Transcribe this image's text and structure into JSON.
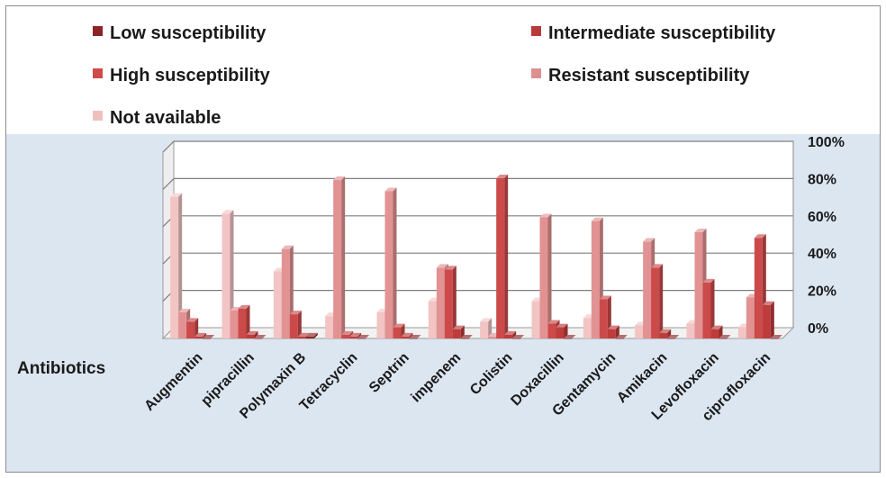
{
  "chart_data": {
    "type": "bar",
    "xlabel": "Antibiotics",
    "ylim": [
      0,
      100
    ],
    "ytick_labels": [
      "0%",
      "20%",
      "40%",
      "60%",
      "80%",
      "100%"
    ],
    "grid": true,
    "legend_position": "top",
    "categories": [
      "Augmentin",
      "pipracillin",
      "Polymaxin B",
      "Tetracyclin",
      "Septrin",
      "impenem",
      "Colistin",
      "Doxacillin",
      "Gentamycin",
      "Amikacin",
      "Levofloxacin",
      "ciprofloxacin"
    ],
    "series": [
      {
        "name": "Not available",
        "color": "#f2c4c4",
        "values": [
          76,
          67,
          36,
          12,
          14,
          20,
          9,
          20,
          11,
          7,
          8,
          6
        ]
      },
      {
        "name": "Resistant susceptibility",
        "color": "#e29292",
        "values": [
          14,
          15,
          48,
          85,
          79,
          38,
          1,
          65,
          63,
          52,
          57,
          22
        ]
      },
      {
        "name": "High susceptibility",
        "color": "#cc4a4a",
        "values": [
          9,
          16,
          13,
          2,
          6,
          37,
          86,
          8,
          21,
          38,
          30,
          54
        ]
      },
      {
        "name": "Intermediate susceptibility",
        "color": "#bf3c3c",
        "values": [
          1,
          2,
          1,
          1,
          1,
          5,
          2,
          6,
          5,
          3,
          5,
          18
        ]
      },
      {
        "name": "Low susceptibility",
        "color": "#8b2424",
        "values": [
          0,
          0,
          1,
          0,
          0,
          0,
          0,
          0,
          0,
          0,
          0,
          0
        ]
      }
    ]
  },
  "legend": [
    {
      "label": "Low susceptibility",
      "color": "#8b2424"
    },
    {
      "label": "Intermediate susceptibility",
      "color": "#b83a3a"
    },
    {
      "label": "High susceptibility",
      "color": "#d04a4a"
    },
    {
      "label": "Resistant susceptibility",
      "color": "#de8f8f"
    },
    {
      "label": "Not available",
      "color": "#f0c0c0"
    }
  ],
  "colors": {
    "plot_background": "#dce6f1",
    "wall": "#ffffff",
    "gridline": "#7f7f7f"
  }
}
